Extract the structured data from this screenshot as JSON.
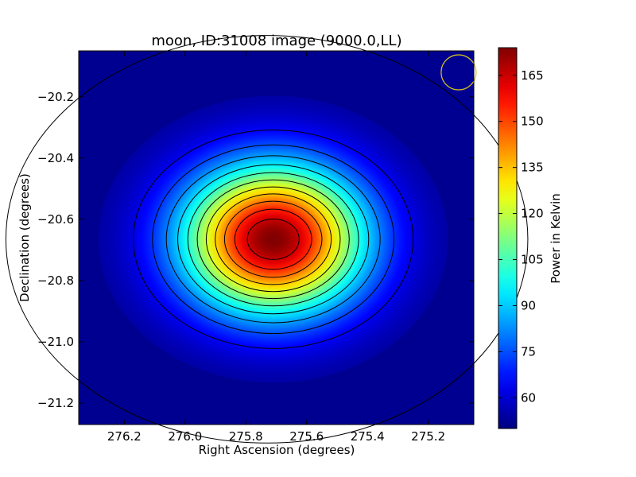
{
  "chart_data": {
    "type": "heatmap",
    "title": "moon, ID:31008 image (9000.0,LL)",
    "xlabel": "Right Ascension (degrees)",
    "ylabel": "Declination (degrees)",
    "x_axis_inverted": true,
    "xlim": [
      276.35,
      275.05
    ],
    "ylim": [
      -21.27,
      -20.05
    ],
    "x_ticks": [
      {
        "value": 276.2,
        "label": "276.2"
      },
      {
        "value": 276.0,
        "label": "276.0"
      },
      {
        "value": 275.8,
        "label": "275.8"
      },
      {
        "value": 275.6,
        "label": "275.6"
      },
      {
        "value": 275.4,
        "label": "275.4"
      },
      {
        "value": 275.2,
        "label": "275.2"
      }
    ],
    "y_ticks": [
      {
        "value": -20.2,
        "label": "−20.2"
      },
      {
        "value": -20.4,
        "label": "−20.4"
      },
      {
        "value": -20.6,
        "label": "−20.6"
      },
      {
        "value": -20.8,
        "label": "−20.8"
      },
      {
        "value": -21.0,
        "label": "−21.0"
      },
      {
        "value": -21.2,
        "label": "−21.2"
      }
    ],
    "colormap": "jet",
    "colorbar": {
      "label": "Power in Kelvin",
      "range": [
        50,
        174
      ],
      "ticks": [
        {
          "value": 60,
          "label": "60"
        },
        {
          "value": 75,
          "label": "75"
        },
        {
          "value": 90,
          "label": "90"
        },
        {
          "value": 105,
          "label": "105"
        },
        {
          "value": 120,
          "label": "120"
        },
        {
          "value": 135,
          "label": "135"
        },
        {
          "value": 150,
          "label": "150"
        },
        {
          "value": 165,
          "label": "165"
        }
      ]
    },
    "source": {
      "ra_center": 275.71,
      "dec_center": -20.665,
      "peak_kelvin": 174,
      "background_kelvin": 52
    },
    "contour_levels": [
      55,
      65,
      75,
      85,
      95,
      105,
      115,
      125,
      135,
      145,
      155,
      165
    ],
    "beam": {
      "ra": 275.1,
      "dec": -20.12,
      "color": "#d4c21a"
    }
  }
}
